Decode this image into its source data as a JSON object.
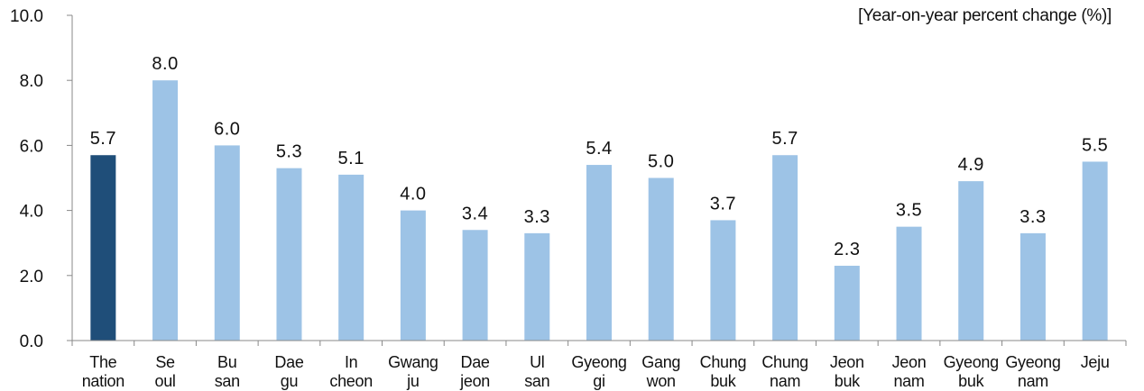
{
  "unit_note": "[Year-on-year percent change (%)]",
  "chart_data": {
    "type": "bar",
    "title": "",
    "xlabel": "",
    "ylabel": "",
    "ylim": [
      0,
      10
    ],
    "yticks": [
      "0.0",
      "2.0",
      "4.0",
      "6.0",
      "8.0",
      "10.0"
    ],
    "grid": false,
    "categories": [
      [
        "The",
        "nation"
      ],
      [
        "Se",
        "oul"
      ],
      [
        "Bu",
        "san"
      ],
      [
        "Dae",
        "gu"
      ],
      [
        "In",
        "cheon"
      ],
      [
        "Gwang",
        "ju"
      ],
      [
        "Dae",
        "jeon"
      ],
      [
        "Ul",
        "san"
      ],
      [
        "Gyeong",
        "gi"
      ],
      [
        "Gang",
        "won"
      ],
      [
        "Chung",
        "buk"
      ],
      [
        "Chung",
        "nam"
      ],
      [
        "Jeon",
        "buk"
      ],
      [
        "Jeon",
        "nam"
      ],
      [
        "Gyeong",
        "buk"
      ],
      [
        "Gyeong",
        "nam"
      ],
      [
        "Jeju"
      ]
    ],
    "values": [
      5.7,
      8.0,
      6.0,
      5.3,
      5.1,
      4.0,
      3.4,
      3.3,
      5.4,
      5.0,
      3.7,
      5.7,
      2.3,
      3.5,
      4.9,
      3.3,
      5.5
    ],
    "data_labels": [
      "5.7",
      "8.0",
      "6.0",
      "5.3",
      "5.1",
      "4.0",
      "3.4",
      "3.3",
      "5.4",
      "5.0",
      "3.7",
      "5.7",
      "2.3",
      "3.5",
      "4.9",
      "3.3",
      "5.5"
    ],
    "colors": {
      "highlight": "#1f4e79",
      "bar": "#9dc3e6",
      "axis": "#888888",
      "text": "#111111"
    }
  }
}
